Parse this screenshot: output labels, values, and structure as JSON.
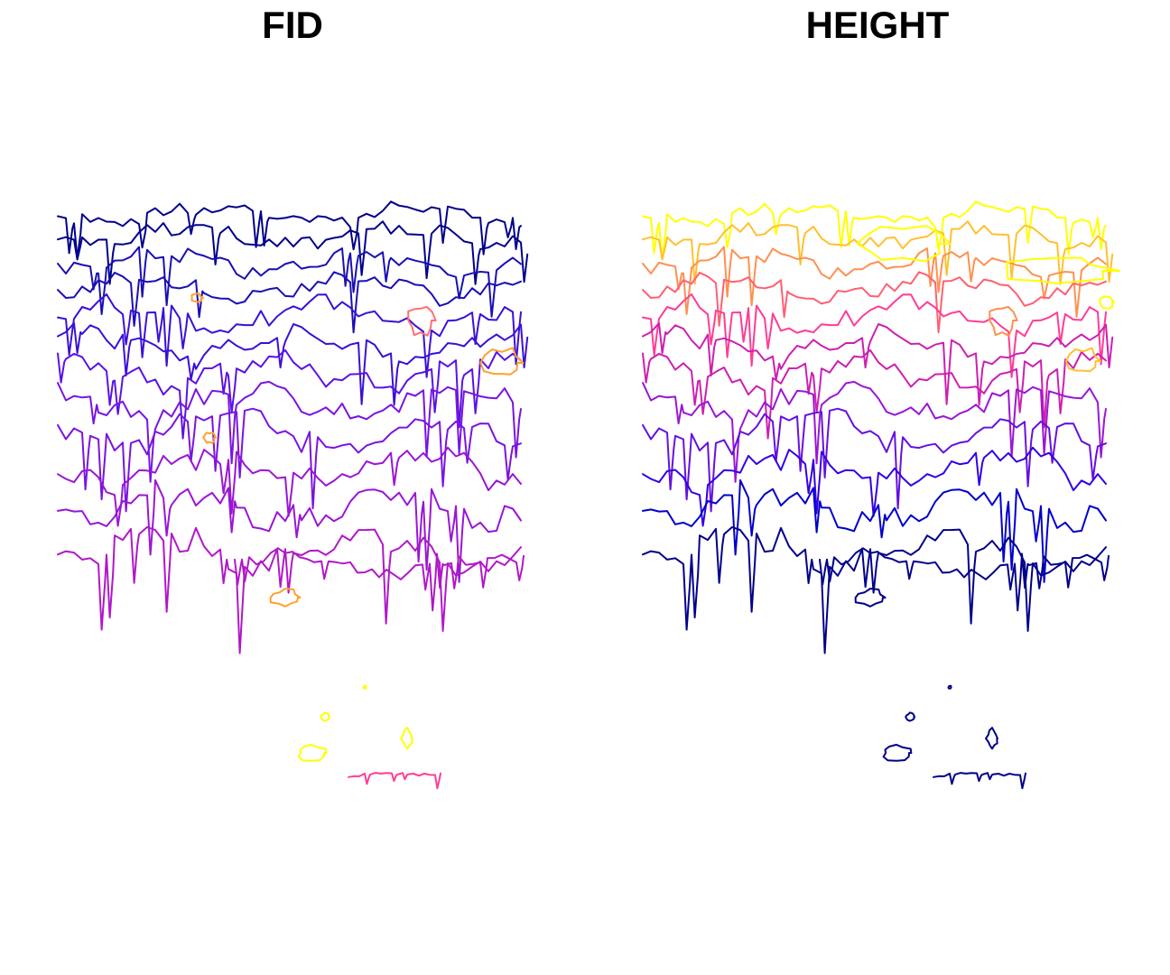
{
  "maps": [
    {
      "title": "FID",
      "contours": [
        {
          "id": 1,
          "color": "#00008b"
        },
        {
          "id": 2,
          "color": "#1a0fb5"
        },
        {
          "id": 3,
          "color": "#3a10d8"
        },
        {
          "id": 4,
          "color": "#5a12e6"
        },
        {
          "id": 5,
          "color": "#7a14e0"
        },
        {
          "id": 6,
          "color": "#9a16d4"
        },
        {
          "id": 7,
          "color": "#b018c8"
        },
        {
          "id": 8,
          "color": "#ff3c96"
        },
        {
          "id": 9,
          "color": "#ff7070"
        },
        {
          "id": 10,
          "color": "#ffa030"
        },
        {
          "id": 11,
          "color": "#ffff00"
        }
      ]
    },
    {
      "title": "HEIGHT",
      "contours": [
        {
          "id": 1,
          "color": "#00008b"
        },
        {
          "id": 2,
          "color": "#0000cd"
        },
        {
          "id": 3,
          "color": "#3300e6"
        },
        {
          "id": 4,
          "color": "#6610e0"
        },
        {
          "id": 5,
          "color": "#9a16d4"
        },
        {
          "id": 6,
          "color": "#cc20b0"
        },
        {
          "id": 7,
          "color": "#ff3c96"
        },
        {
          "id": 8,
          "color": "#ff6070"
        },
        {
          "id": 9,
          "color": "#ff9050"
        },
        {
          "id": 10,
          "color": "#ffc030"
        },
        {
          "id": 11,
          "color": "#ffff00"
        }
      ]
    }
  ]
}
